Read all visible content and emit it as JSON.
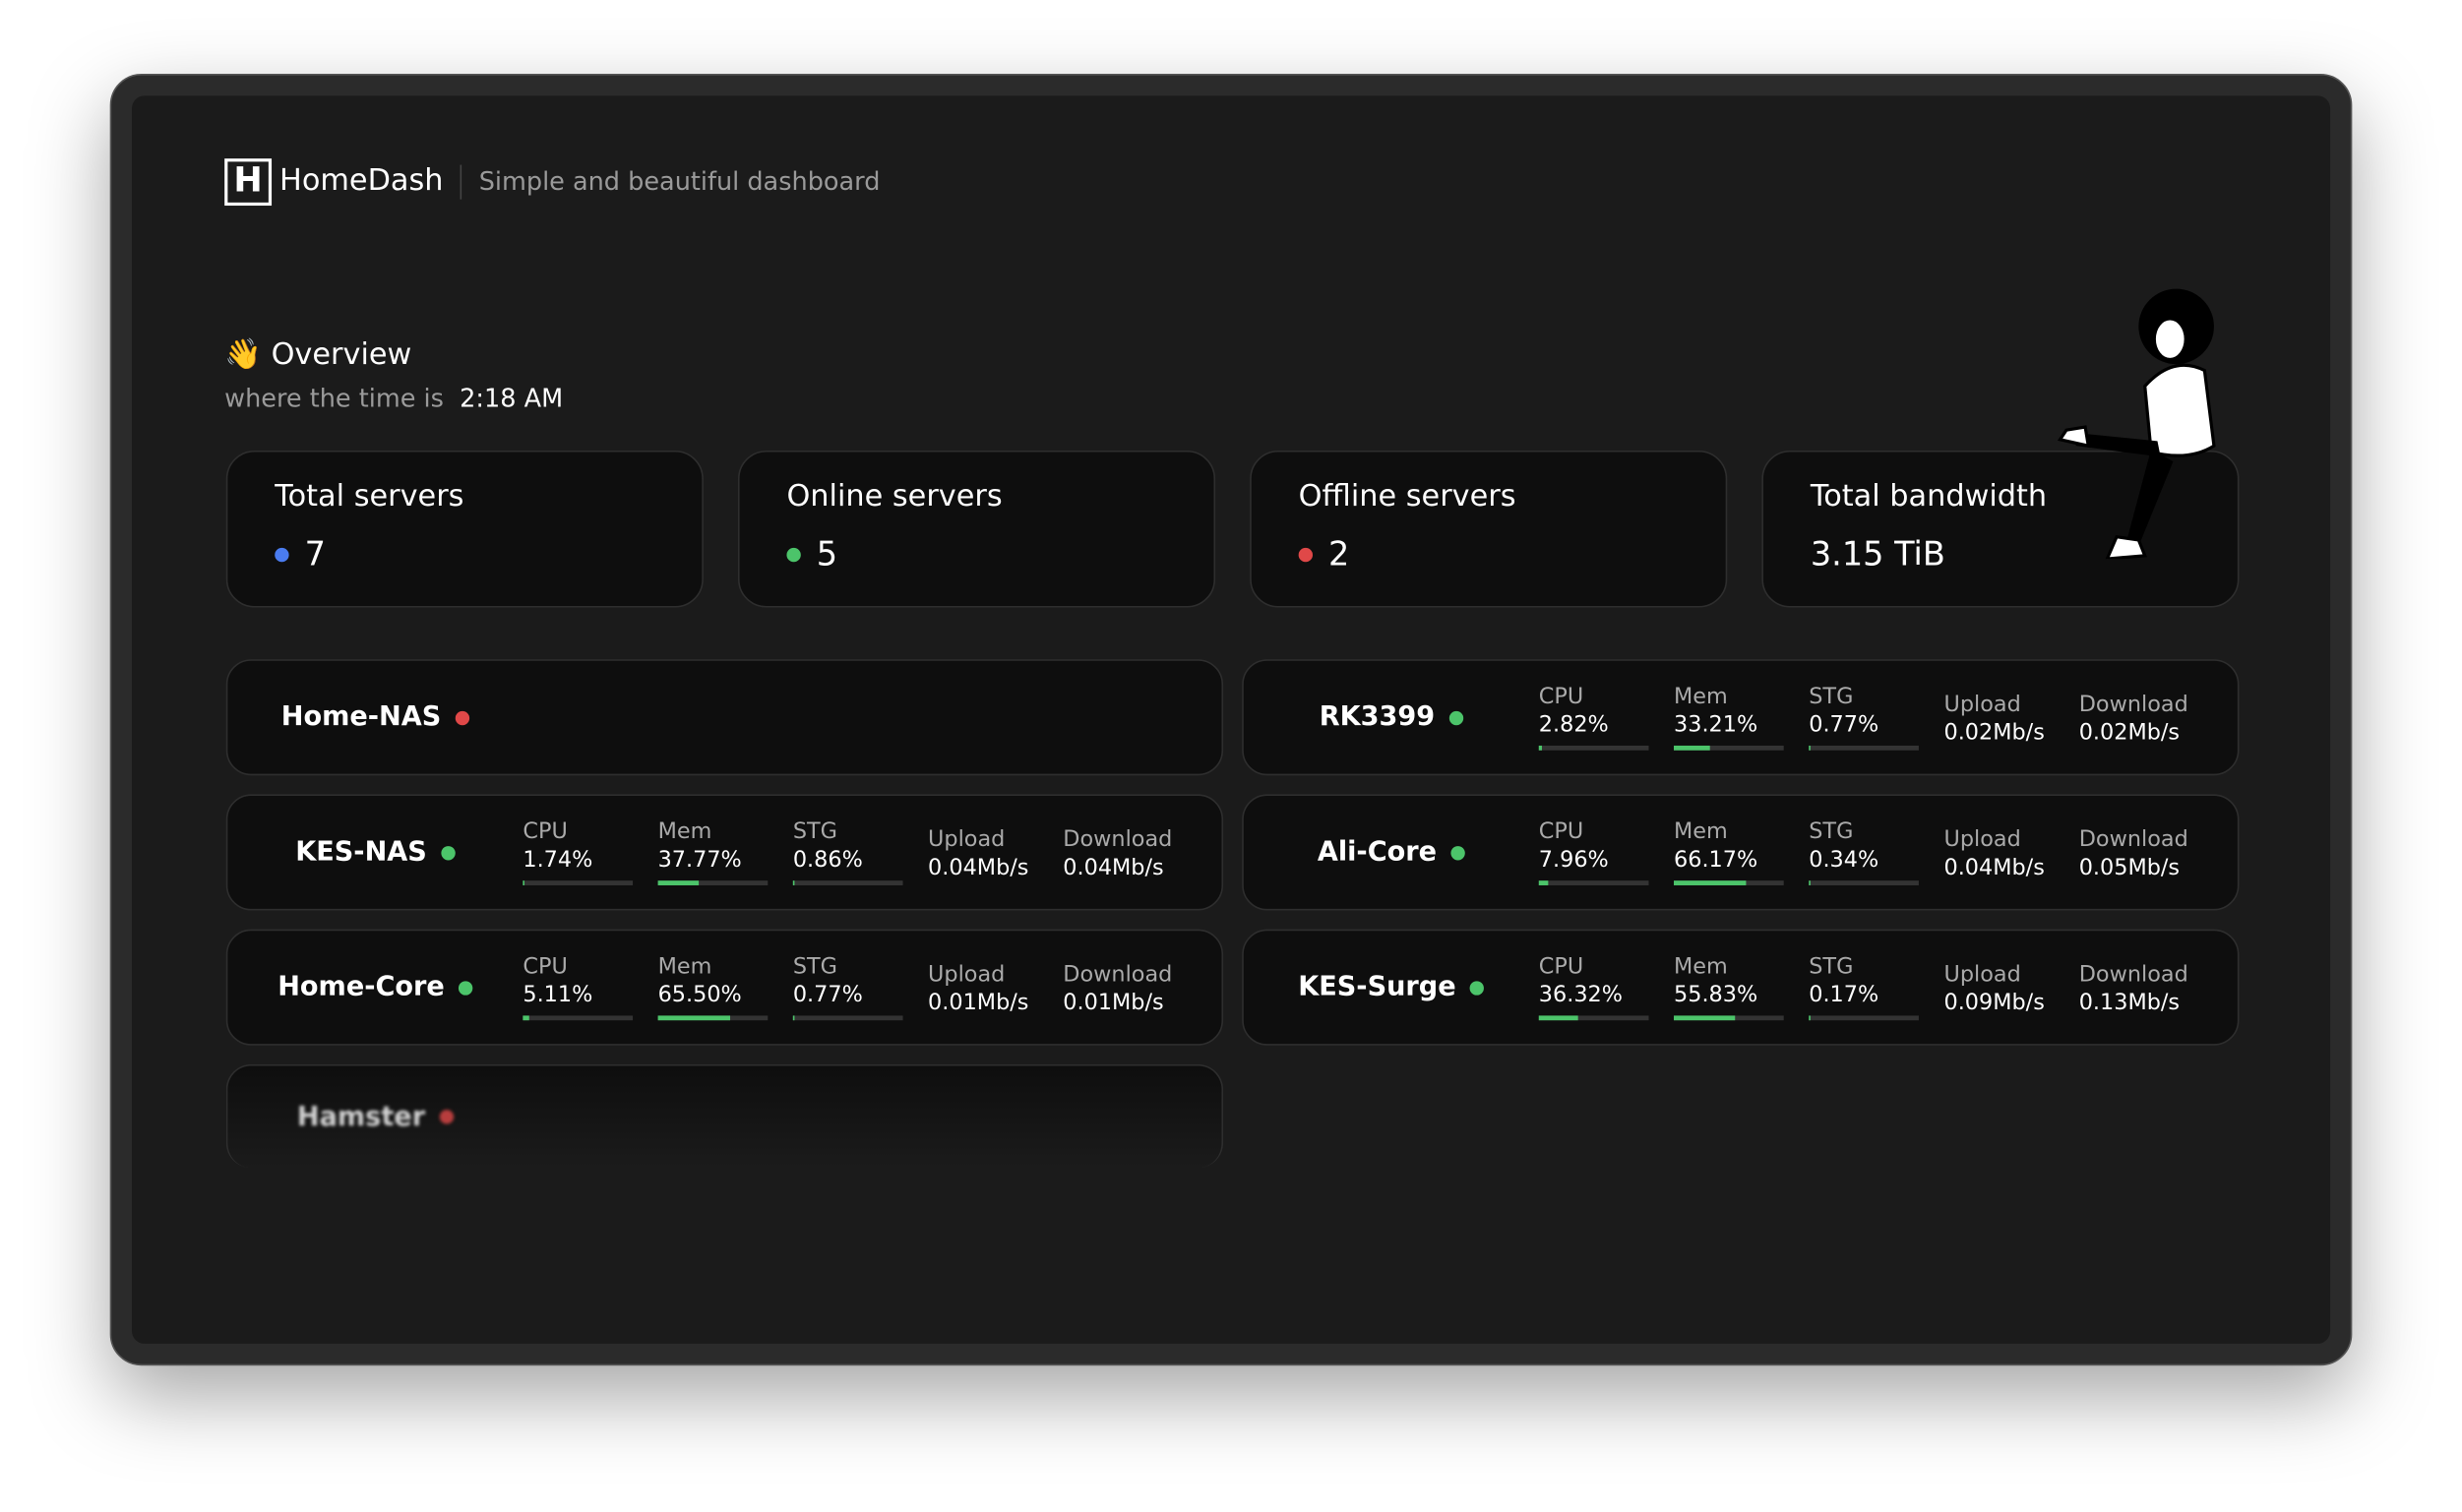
{
  "header": {
    "logo": "H",
    "brand": "HomeDash",
    "tagline": "Simple and beautiful dashboard"
  },
  "overview": {
    "title": "👋 Overview",
    "time_prefix": "where the time is",
    "time": "2:18 AM"
  },
  "stats": [
    {
      "label": "Total servers",
      "value": "7",
      "color": "#4a7cf0"
    },
    {
      "label": "Online servers",
      "value": "5",
      "color": "#4cc46a"
    },
    {
      "label": "Offline servers",
      "value": "2",
      "color": "#e04848"
    },
    {
      "label": "Total bandwidth",
      "value": "3.15 TiB"
    }
  ],
  "servers": [
    {
      "name": "Home-NAS",
      "status": "offline"
    },
    {
      "name": "RK3399",
      "status": "online",
      "usage": [
        {
          "name": "CPU",
          "value": 2.82,
          "value_label": "2.82%"
        },
        {
          "name": "Mem",
          "value": 33.21,
          "value_label": "33.21%"
        },
        {
          "name": "STG",
          "value": 0.77,
          "value_label": "0.77%"
        }
      ],
      "traffic": [
        {
          "name": "Upload",
          "value_label": "0.02Mb/s"
        },
        {
          "name": "Download",
          "value_label": "0.02Mb/s"
        }
      ]
    },
    {
      "name": "KES-NAS",
      "status": "online",
      "usage": [
        {
          "name": "CPU",
          "value": 1.74,
          "value_label": "1.74%"
        },
        {
          "name": "Mem",
          "value": 37.77,
          "value_label": "37.77%"
        },
        {
          "name": "STG",
          "value": 0.86,
          "value_label": "0.86%"
        }
      ],
      "traffic": [
        {
          "name": "Upload",
          "value_label": "0.04Mb/s"
        },
        {
          "name": "Download",
          "value_label": "0.04Mb/s"
        }
      ]
    },
    {
      "name": "Ali-Core",
      "status": "online",
      "usage": [
        {
          "name": "CPU",
          "value": 7.96,
          "value_label": "7.96%"
        },
        {
          "name": "Mem",
          "value": 66.17,
          "value_label": "66.17%"
        },
        {
          "name": "STG",
          "value": 0.34,
          "value_label": "0.34%"
        }
      ],
      "traffic": [
        {
          "name": "Upload",
          "value_label": "0.04Mb/s"
        },
        {
          "name": "Download",
          "value_label": "0.05Mb/s"
        }
      ]
    },
    {
      "name": "Home-Core",
      "status": "online",
      "usage": [
        {
          "name": "CPU",
          "value": 5.11,
          "value_label": "5.11%"
        },
        {
          "name": "Mem",
          "value": 65.5,
          "value_label": "65.50%"
        },
        {
          "name": "STG",
          "value": 0.77,
          "value_label": "0.77%"
        }
      ],
      "traffic": [
        {
          "name": "Upload",
          "value_label": "0.01Mb/s"
        },
        {
          "name": "Download",
          "value_label": "0.01Mb/s"
        }
      ]
    },
    {
      "name": "KES-Surge",
      "status": "online",
      "usage": [
        {
          "name": "CPU",
          "value": 36.32,
          "value_label": "36.32%"
        },
        {
          "name": "Mem",
          "value": 55.83,
          "value_label": "55.83%"
        },
        {
          "name": "STG",
          "value": 0.17,
          "value_label": "0.17%"
        }
      ],
      "traffic": [
        {
          "name": "Upload",
          "value_label": "0.09Mb/s"
        },
        {
          "name": "Download",
          "value_label": "0.13Mb/s"
        }
      ]
    },
    {
      "name": "Hamster",
      "status": "offline",
      "faded": true
    }
  ]
}
